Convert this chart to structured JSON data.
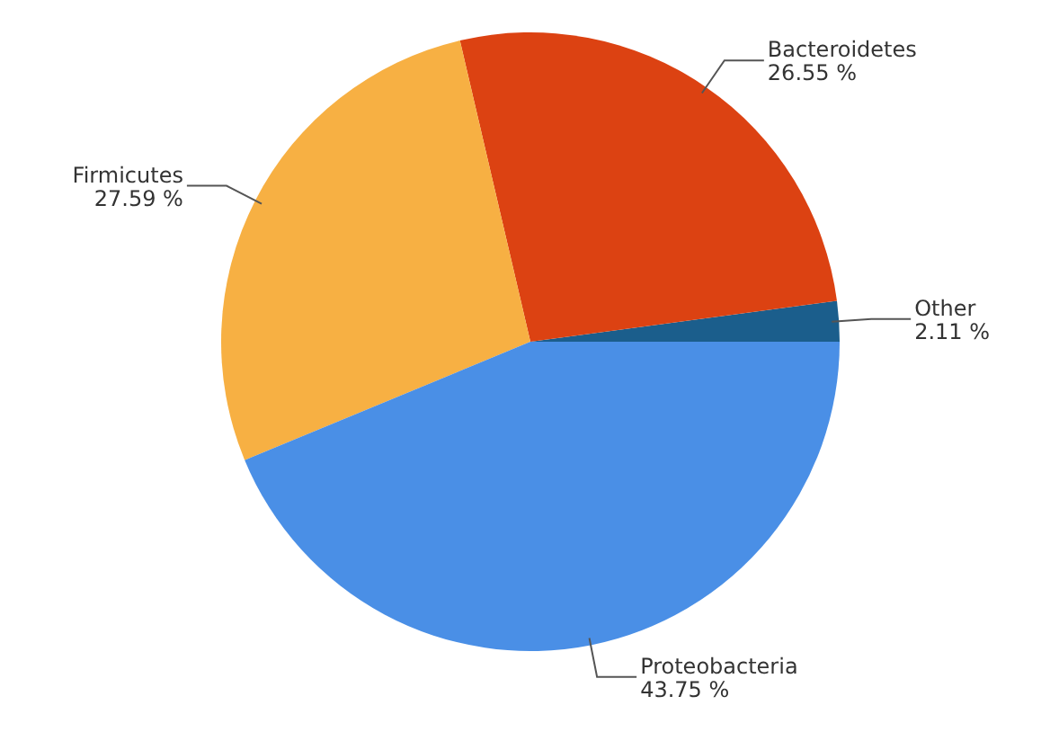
{
  "chart_data": {
    "type": "pie",
    "categories": [
      "Other",
      "Bacteroidetes",
      "Firmicutes",
      "Proteobacteria"
    ],
    "values": [
      2.11,
      26.55,
      27.59,
      43.75
    ],
    "colors": [
      "#1b5e8c",
      "#dc4212",
      "#f7b043",
      "#4a8fe6"
    ],
    "value_labels": [
      "2.11 %",
      "26.55 %",
      "27.59 %",
      "43.75 %"
    ]
  }
}
